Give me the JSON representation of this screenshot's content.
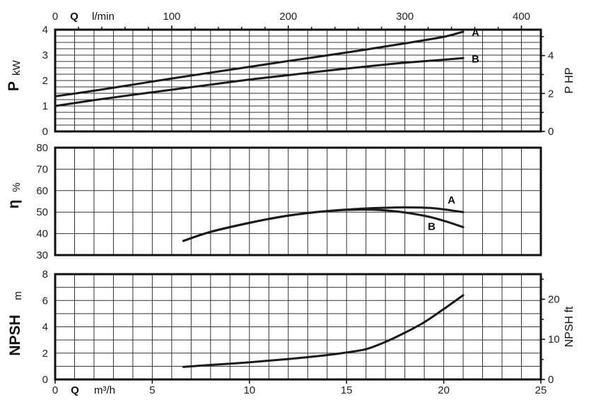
{
  "top_axis": {
    "q_label": "Q",
    "unit": "l/min",
    "tick_labels": [
      "0",
      "100",
      "200",
      "300",
      "400"
    ]
  },
  "bottom_axis": {
    "q_label": "Q",
    "unit": "m³/h",
    "tick_labels": [
      "0",
      "5",
      "10",
      "15",
      "20",
      "25"
    ]
  },
  "chart_data": [
    {
      "type": "line",
      "panel": "power",
      "ylabel": "P",
      "ylabel_unit": "kW",
      "ylabel_right": "P HP",
      "xlim": [
        0,
        25
      ],
      "ylim": [
        0,
        4
      ],
      "y_tick_labels": [
        "0",
        "1",
        "2",
        "3",
        "4"
      ],
      "y_right_tick_labels": [
        "0",
        "2",
        "4"
      ],
      "y_right_tick_values": [
        0,
        2,
        4
      ],
      "y_right_scale_hp_per_kw": 1.341,
      "grid": true,
      "series": [
        {
          "name": "A",
          "x": [
            0,
            2,
            4,
            6,
            8,
            10,
            12,
            14,
            16,
            18,
            20,
            21
          ],
          "y": [
            1.38,
            1.6,
            1.84,
            2.08,
            2.31,
            2.54,
            2.77,
            2.99,
            3.22,
            3.46,
            3.72,
            3.92
          ]
        },
        {
          "name": "B",
          "x": [
            0,
            2,
            4,
            6,
            8,
            10,
            12,
            14,
            16,
            18,
            20,
            21
          ],
          "y": [
            1.0,
            1.23,
            1.44,
            1.64,
            1.84,
            2.04,
            2.21,
            2.39,
            2.55,
            2.7,
            2.82,
            2.88
          ]
        }
      ]
    },
    {
      "type": "line",
      "panel": "efficiency",
      "ylabel": "η",
      "ylabel_unit": "%",
      "xlim": [
        0,
        25
      ],
      "ylim": [
        30,
        80
      ],
      "y_tick_labels": [
        "30",
        "40",
        "50",
        "60",
        "70",
        "80"
      ],
      "grid": true,
      "series": [
        {
          "name": "A",
          "x": [
            6.6,
            8,
            10,
            12,
            14,
            16,
            18,
            19.5,
            21
          ],
          "y": [
            36.6,
            40.8,
            45.0,
            48.4,
            50.5,
            51.7,
            52.2,
            51.8,
            50.0
          ]
        },
        {
          "name": "B",
          "x": [
            6.6,
            8,
            10,
            12,
            14,
            16,
            17.5,
            19,
            20,
            21
          ],
          "y": [
            36.6,
            40.8,
            45.0,
            48.4,
            50.5,
            51.2,
            50.4,
            48.3,
            46.0,
            43.0
          ]
        }
      ]
    },
    {
      "type": "line",
      "panel": "npsh",
      "ylabel": "NPSH",
      "ylabel_unit": "m",
      "ylabel_right": "NPSH ft",
      "xlim": [
        0,
        25
      ],
      "ylim": [
        0,
        8
      ],
      "y_tick_labels": [
        "0",
        "2",
        "4",
        "6",
        "8"
      ],
      "y_right_tick_labels": [
        "0",
        "10",
        "20"
      ],
      "y_right_tick_values": [
        0,
        10,
        20
      ],
      "y_right_scale_ft_per_m": 3.281,
      "grid": true,
      "series": [
        {
          "name": "",
          "x": [
            6.6,
            8,
            10,
            12,
            14,
            15,
            16,
            17,
            18,
            19,
            20,
            21
          ],
          "y": [
            0.95,
            1.1,
            1.3,
            1.55,
            1.85,
            2.05,
            2.3,
            2.85,
            3.55,
            4.35,
            5.35,
            6.4
          ]
        }
      ]
    }
  ]
}
